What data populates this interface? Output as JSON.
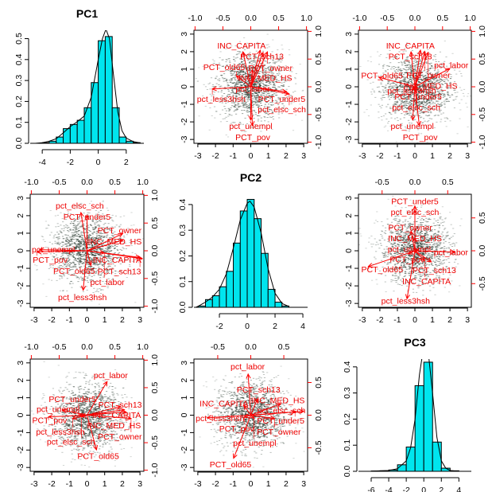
{
  "colors": {
    "bar_fill": "#00e5ee",
    "arrow": "#ff0000",
    "points": "#3a4a40",
    "axis": "#000000"
  },
  "chart_data": [
    {
      "type": "bar",
      "title": "PC1",
      "xlim": [
        -4.86,
        3.26
      ],
      "ylim": [
        0,
        0.54
      ],
      "xticks": [
        "-4",
        "-2",
        "0",
        "2"
      ],
      "xtick_values": [
        -4,
        -2,
        0,
        2
      ],
      "yticks": [
        "0.0",
        "0.1",
        "0.2",
        "0.3",
        "0.4",
        "0.5"
      ],
      "ytick_values": [
        0,
        0.1,
        0.2,
        0.3,
        0.4,
        0.5
      ],
      "bin_start": -4,
      "bin_width": 0.5,
      "values": [
        0.003,
        0.01,
        0.03,
        0.07,
        0.09,
        0.11,
        0.17,
        0.29,
        0.49,
        0.51,
        0.17,
        0.03,
        0.01,
        0.003
      ],
      "density": [
        [
          -4.5,
          0
        ],
        [
          -4,
          0.003
        ],
        [
          -3.5,
          0.01
        ],
        [
          -3,
          0.022
        ],
        [
          -2.5,
          0.05
        ],
        [
          -2,
          0.08
        ],
        [
          -1.5,
          0.103
        ],
        [
          -1,
          0.13
        ],
        [
          -0.5,
          0.22
        ],
        [
          0,
          0.4
        ],
        [
          0.3,
          0.5
        ],
        [
          0.55,
          0.545
        ],
        [
          0.8,
          0.5
        ],
        [
          1.1,
          0.32
        ],
        [
          1.4,
          0.15
        ],
        [
          1.7,
          0.06
        ],
        [
          2,
          0.025
        ],
        [
          2.5,
          0.008
        ],
        [
          3,
          0.002
        ]
      ]
    },
    {
      "type": "scatter",
      "xlim": [
        -3.22,
        3.22
      ],
      "ylim": [
        -3.22,
        3.22
      ],
      "xlim2": [
        -1.02,
        1.02
      ],
      "ylim2": [
        -1.02,
        1.02
      ],
      "xticks": [
        "-3",
        "-2",
        "-1",
        "0",
        "1",
        "2",
        "3"
      ],
      "yticks": [
        "-3",
        "-2",
        "-1",
        "0",
        "1",
        "2",
        "3"
      ],
      "xticks2": [
        "-1.0",
        "-0.5",
        "0.0",
        "0.5",
        "1.0"
      ],
      "yticks2": [
        "-1.0",
        "-0.5",
        "0.0",
        "0.5",
        "1.0"
      ],
      "arrows": [
        {
          "label": "INC_CAPITA",
          "x": -0.14,
          "y": 0.63
        },
        {
          "label": "PCT_sch13",
          "x": 0.17,
          "y": 0.66
        },
        {
          "label": "PCT_owner",
          "x": 0.3,
          "y": 0.63
        },
        {
          "label": "INC_MED_HS",
          "x": 0.22,
          "y": 0.62
        },
        {
          "label": "pct_labor",
          "x": 0.03,
          "y": 0.31
        },
        {
          "label": "PCT_old65",
          "x": -0.26,
          "y": 0.2
        },
        {
          "label": "pct_less3hsh",
          "x": -0.69,
          "y": -0.04
        },
        {
          "label": "PCT_under5",
          "x": 0.64,
          "y": -0.09
        },
        {
          "label": "pct_elsc_sch",
          "x": 0.69,
          "y": -0.13
        },
        {
          "label": "pct_unempl",
          "x": 0,
          "y": -0.6
        },
        {
          "label": "PCT_pov",
          "x": 0.03,
          "y": -0.7
        }
      ]
    },
    {
      "type": "scatter",
      "xlim": [
        -3.22,
        3.22
      ],
      "ylim": [
        -3.22,
        3.22
      ],
      "xlim2": [
        -1.02,
        1.02
      ],
      "ylim2": [
        -1.02,
        1.02
      ],
      "xticks": [
        "-3",
        "-2",
        "-1",
        "0",
        "1",
        "2",
        "3"
      ],
      "yticks": [
        "-3",
        "-2",
        "-1",
        "0",
        "1",
        "2",
        "3"
      ],
      "xticks2": [
        "-1.0",
        "-0.5",
        "0.0",
        "0.5",
        "1.0"
      ],
      "yticks2": [
        "-1.0",
        "-0.5",
        "0.0",
        "0.5",
        "1.0"
      ],
      "arrows": [
        {
          "label": "PCT_old65",
          "x": -0.65,
          "y": 0.17
        },
        {
          "label": "pct_labor",
          "x": 0.63,
          "y": 0.33
        },
        {
          "label": "INC_CAPITA",
          "x": -0.07,
          "y": 0.63
        },
        {
          "label": "PCT_sch13",
          "x": 0.1,
          "y": 0.66
        },
        {
          "label": "PCT_owner",
          "x": 0.18,
          "y": 0.64
        },
        {
          "label": "INC_MED_HS",
          "x": 0.24,
          "y": 0.62
        },
        {
          "label": "pct_unempl",
          "x": -0.04,
          "y": -0.6
        },
        {
          "label": "PCT_pov",
          "x": 0.08,
          "y": -0.7
        },
        {
          "label": "PCT_under5",
          "x": 0.05,
          "y": -0.03
        },
        {
          "label": "pct_elsc_sch",
          "x": 0.02,
          "y": -0.1
        },
        {
          "label": "pct_less3hsh",
          "x": -0.05,
          "y": -0.06
        }
      ]
    },
    {
      "type": "scatter",
      "xlim": [
        -3.22,
        3.22
      ],
      "ylim": [
        -3.22,
        3.22
      ],
      "xlim2": [
        -1.02,
        1.02
      ],
      "ylim2": [
        -1.02,
        1.02
      ],
      "xticks": [
        "-3",
        "-2",
        "-1",
        "0",
        "1",
        "2",
        "3"
      ],
      "yticks": [
        "-3",
        "-2",
        "-1",
        "0",
        "1",
        "2",
        "3"
      ],
      "xticks2": [
        "-1.0",
        "-0.5",
        "0.0",
        "0.5",
        "1.0"
      ],
      "yticks2": [
        "-1.0",
        "-0.5",
        "0.0",
        "0.5",
        "1.0"
      ],
      "arrows": [
        {
          "label": "pct_elsc_sch",
          "x": -0.11,
          "y": 0.69
        },
        {
          "label": "PCT_under5",
          "x": 0,
          "y": 0.64
        },
        {
          "label": "pct_less3hsh",
          "x": -0.07,
          "y": -0.71
        },
        {
          "label": "pct_unempl",
          "x": -0.85,
          "y": 0.02
        },
        {
          "label": "PCT_pov",
          "x": -0.9,
          "y": -0.02
        },
        {
          "label": "PCT_owner",
          "x": 0.64,
          "y": 0.31
        },
        {
          "label": "INC_MED_HS",
          "x": 0.64,
          "y": 0.19
        },
        {
          "label": "INC_CAPITA",
          "x": 0.99,
          "y": -0.14
        },
        {
          "label": "PCT_sch13",
          "x": 0.95,
          "y": -0.12
        },
        {
          "label": "pct_labor",
          "x": 0.31,
          "y": -0.04
        },
        {
          "label": "PCT_old65",
          "x": 0.07,
          "y": -0.26
        }
      ]
    },
    {
      "type": "bar",
      "title": "PC2",
      "xlim": [
        -3.83,
        4.34
      ],
      "ylim": [
        0,
        0.44
      ],
      "xticks": [
        "-2",
        "0",
        "2",
        "4"
      ],
      "xtick_values": [
        -2,
        0,
        2,
        4
      ],
      "yticks": [
        "0.0",
        "0.1",
        "0.2",
        "0.3",
        "0.4"
      ],
      "ytick_values": [
        0,
        0.1,
        0.2,
        0.3,
        0.4
      ],
      "bin_start": -3.5,
      "bin_width": 0.5,
      "values": [
        0.005,
        0.03,
        0.045,
        0.08,
        0.14,
        0.25,
        0.375,
        0.42,
        0.345,
        0.21,
        0.07,
        0.02,
        0.005
      ],
      "density": [
        [
          -3.7,
          0
        ],
        [
          -3.5,
          0.005
        ],
        [
          -3,
          0.02
        ],
        [
          -2.5,
          0.04
        ],
        [
          -2,
          0.07
        ],
        [
          -1.5,
          0.13
        ],
        [
          -1,
          0.23
        ],
        [
          -0.5,
          0.34
        ],
        [
          0,
          0.405
        ],
        [
          0.2,
          0.413
        ],
        [
          0.5,
          0.39
        ],
        [
          1,
          0.29
        ],
        [
          1.5,
          0.15
        ],
        [
          2,
          0.055
        ],
        [
          2.5,
          0.015
        ],
        [
          3,
          0.003
        ]
      ]
    },
    {
      "type": "scatter",
      "xlim": [
        -3.22,
        3.22
      ],
      "ylim": [
        -3.22,
        3.22
      ],
      "xlim2": [
        -0.86,
        0.86
      ],
      "ylim2": [
        -0.86,
        0.86
      ],
      "xticks": [
        "-3",
        "-2",
        "-1",
        "0",
        "1",
        "2",
        "3"
      ],
      "yticks": [
        "-3",
        "-2",
        "-1",
        "0",
        "1",
        "2",
        "3"
      ],
      "xticks2": [
        "-0.5",
        "0.0",
        "0.5"
      ],
      "yticks2": [
        "-0.5",
        "0.0",
        "0.5"
      ],
      "arrows": [
        {
          "label": "PCT_under5",
          "x": 0,
          "y": 0.68
        },
        {
          "label": "pct_elsc_sch",
          "x": 0.0,
          "y": 0.62
        },
        {
          "label": "PCT_owner",
          "x": -0.06,
          "y": 0.3
        },
        {
          "label": "INC_MED_HS",
          "x": 0.0,
          "y": 0.2
        },
        {
          "label": "pct_labor",
          "x": 0.61,
          "y": -0.02
        },
        {
          "label": "PCT_old65",
          "x": -0.71,
          "y": -0.24
        },
        {
          "label": "pct_less3hsh",
          "x": -0.12,
          "y": -0.73
        },
        {
          "label": "pct_unempl",
          "x": 0.05,
          "y": 0.02
        },
        {
          "label": "PCT_pov",
          "x": -0.1,
          "y": -0.05
        },
        {
          "label": "PCT_sch13",
          "x": 0.25,
          "y": -0.17
        },
        {
          "label": "INC_CAPITA",
          "x": 0.15,
          "y": -0.15
        }
      ]
    },
    {
      "type": "scatter",
      "xlim": [
        -3.22,
        3.22
      ],
      "ylim": [
        -3.22,
        3.22
      ],
      "xlim2": [
        -1.02,
        1.02
      ],
      "ylim2": [
        -1.02,
        1.02
      ],
      "xticks": [
        "-3",
        "-2",
        "-1",
        "0",
        "1",
        "2",
        "3"
      ],
      "yticks": [
        "-3",
        "-2",
        "-1",
        "0",
        "1",
        "2",
        "3"
      ],
      "xticks2": [
        "-1.0",
        "-0.5",
        "0.0",
        "0.5",
        "1.0"
      ],
      "yticks2": [
        "-1.0",
        "-0.5",
        "0.0",
        "0.5",
        "1.0"
      ],
      "arrows": [
        {
          "label": "pct_labor",
          "x": 0.36,
          "y": 0.61
        },
        {
          "label": "PCT_old65",
          "x": 0.17,
          "y": -0.63
        },
        {
          "label": "PCT_sch13",
          "x": 0.6,
          "y": 0.16
        },
        {
          "label": "INC_CAPITA",
          "x": 0.67,
          "y": 0.1
        },
        {
          "label": "INC_MED_HS",
          "x": 0.7,
          "y": 0.06
        },
        {
          "label": "PCT_owner",
          "x": 0.79,
          "y": -0.06
        },
        {
          "label": "pct_unempl",
          "x": -0.44,
          "y": 0.09
        },
        {
          "label": "PCT_pov",
          "x": -0.69,
          "y": -0.03
        },
        {
          "label": "pct_less3hsh",
          "x": -0.26,
          "y": -0.06
        },
        {
          "label": "PCT_under5",
          "x": -0.15,
          "y": 0.0
        },
        {
          "label": "pct_elsc_sch",
          "x": -0.1,
          "y": -0.02
        }
      ]
    },
    {
      "type": "scatter",
      "xlim": [
        -3.22,
        3.22
      ],
      "ylim": [
        -3.22,
        3.22
      ],
      "xlim2": [
        -0.86,
        0.86
      ],
      "ylim2": [
        -0.86,
        0.86
      ],
      "xticks": [
        "-3",
        "-2",
        "-1",
        "0",
        "1",
        "2",
        "3"
      ],
      "yticks": [
        "-3",
        "-2",
        "-1",
        "0",
        "1",
        "2",
        "3"
      ],
      "xticks2": [
        "-0.5",
        "0.0",
        "0.5"
      ],
      "yticks2": [
        "-0.5",
        "0.0",
        "0.5"
      ],
      "arrows": [
        {
          "label": "pct_labor",
          "x": -0.04,
          "y": 0.63
        },
        {
          "label": "PCT_old65",
          "x": -0.26,
          "y": -0.66
        },
        {
          "label": "pct_less3hsh",
          "x": -0.66,
          "y": -0.04
        },
        {
          "label": "pct_elsc_sch",
          "x": 0.8,
          "y": 0.06
        },
        {
          "label": "PCT_under5",
          "x": 0.67,
          "y": 0.05
        },
        {
          "label": "PCT_owner",
          "x": 0.36,
          "y": -0.05
        },
        {
          "label": "INC_MED_HS",
          "x": 0.45,
          "y": 0.17
        },
        {
          "label": "PCT_sch13",
          "x": 0.1,
          "y": 0.25
        },
        {
          "label": "INC_CAPITA",
          "x": -0.1,
          "y": 0.15
        },
        {
          "label": "pct_unempl",
          "x": 0.05,
          "y": -0.05
        },
        {
          "label": "PCT_pov",
          "x": -0.1,
          "y": -0.03
        }
      ]
    },
    {
      "type": "bar",
      "title": "PC3",
      "xlim": [
        -7.45,
        5.42
      ],
      "ylim": [
        0,
        0.43
      ],
      "xticks": [
        "-6",
        "-4",
        "-2",
        "0",
        "2",
        "4"
      ],
      "xtick_values": [
        -6,
        -4,
        -2,
        0,
        2,
        4
      ],
      "yticks": [
        "0.0",
        "0.1",
        "0.2",
        "0.3",
        "0.4"
      ],
      "ytick_values": [
        0,
        0.1,
        0.2,
        0.3,
        0.4
      ],
      "bin_start": -6,
      "bin_width": 1,
      "values": [
        0.001,
        0.002,
        0.005,
        0.025,
        0.093,
        0.328,
        0.418,
        0.112,
        0.012,
        0.002
      ],
      "density": [
        [
          -6,
          0.001
        ],
        [
          -4,
          0.003
        ],
        [
          -3,
          0.01
        ],
        [
          -2,
          0.04
        ],
        [
          -1.5,
          0.09
        ],
        [
          -1,
          0.2
        ],
        [
          -0.5,
          0.37
        ],
        [
          0,
          0.48
        ],
        [
          0.2,
          0.5
        ],
        [
          0.5,
          0.46
        ],
        [
          1,
          0.3
        ],
        [
          1.5,
          0.13
        ],
        [
          2,
          0.04
        ],
        [
          2.5,
          0.012
        ],
        [
          3,
          0.003
        ],
        [
          4,
          0
        ]
      ]
    }
  ]
}
